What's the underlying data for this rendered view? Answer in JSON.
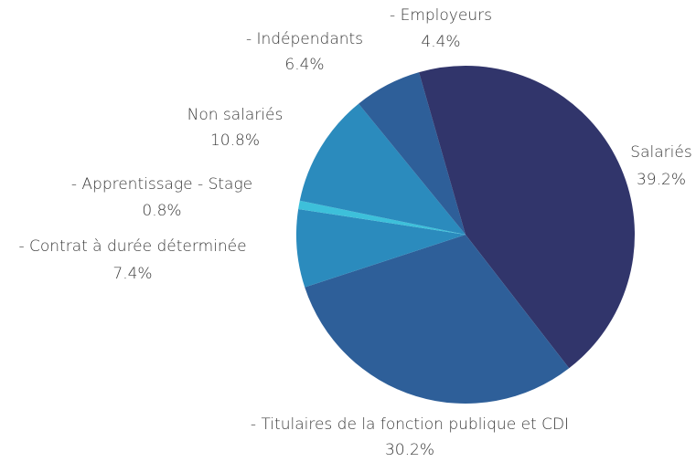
{
  "chart_data": {
    "type": "pie",
    "categories": [
      "Salariés",
      "- Titulaires de la fonction publique et CDI",
      "- Contrat à durée déterminée",
      "- Apprentissage - Stage",
      "Non salariés",
      "- Indépendants",
      "- Employeurs"
    ],
    "values": [
      39.2,
      30.2,
      7.4,
      0.8,
      10.8,
      6.4,
      4.4
    ],
    "value_labels": [
      "39.2%",
      "30.2%",
      "7.4%",
      "0.8%",
      "10.8%",
      "6.4%",
      "4.4%"
    ],
    "colors": [
      "#31356b",
      "#2e5f99",
      "#2b8bbd",
      "#3dc0da",
      "#2b8bbd",
      "#2e5f99",
      "#31356b"
    ]
  }
}
